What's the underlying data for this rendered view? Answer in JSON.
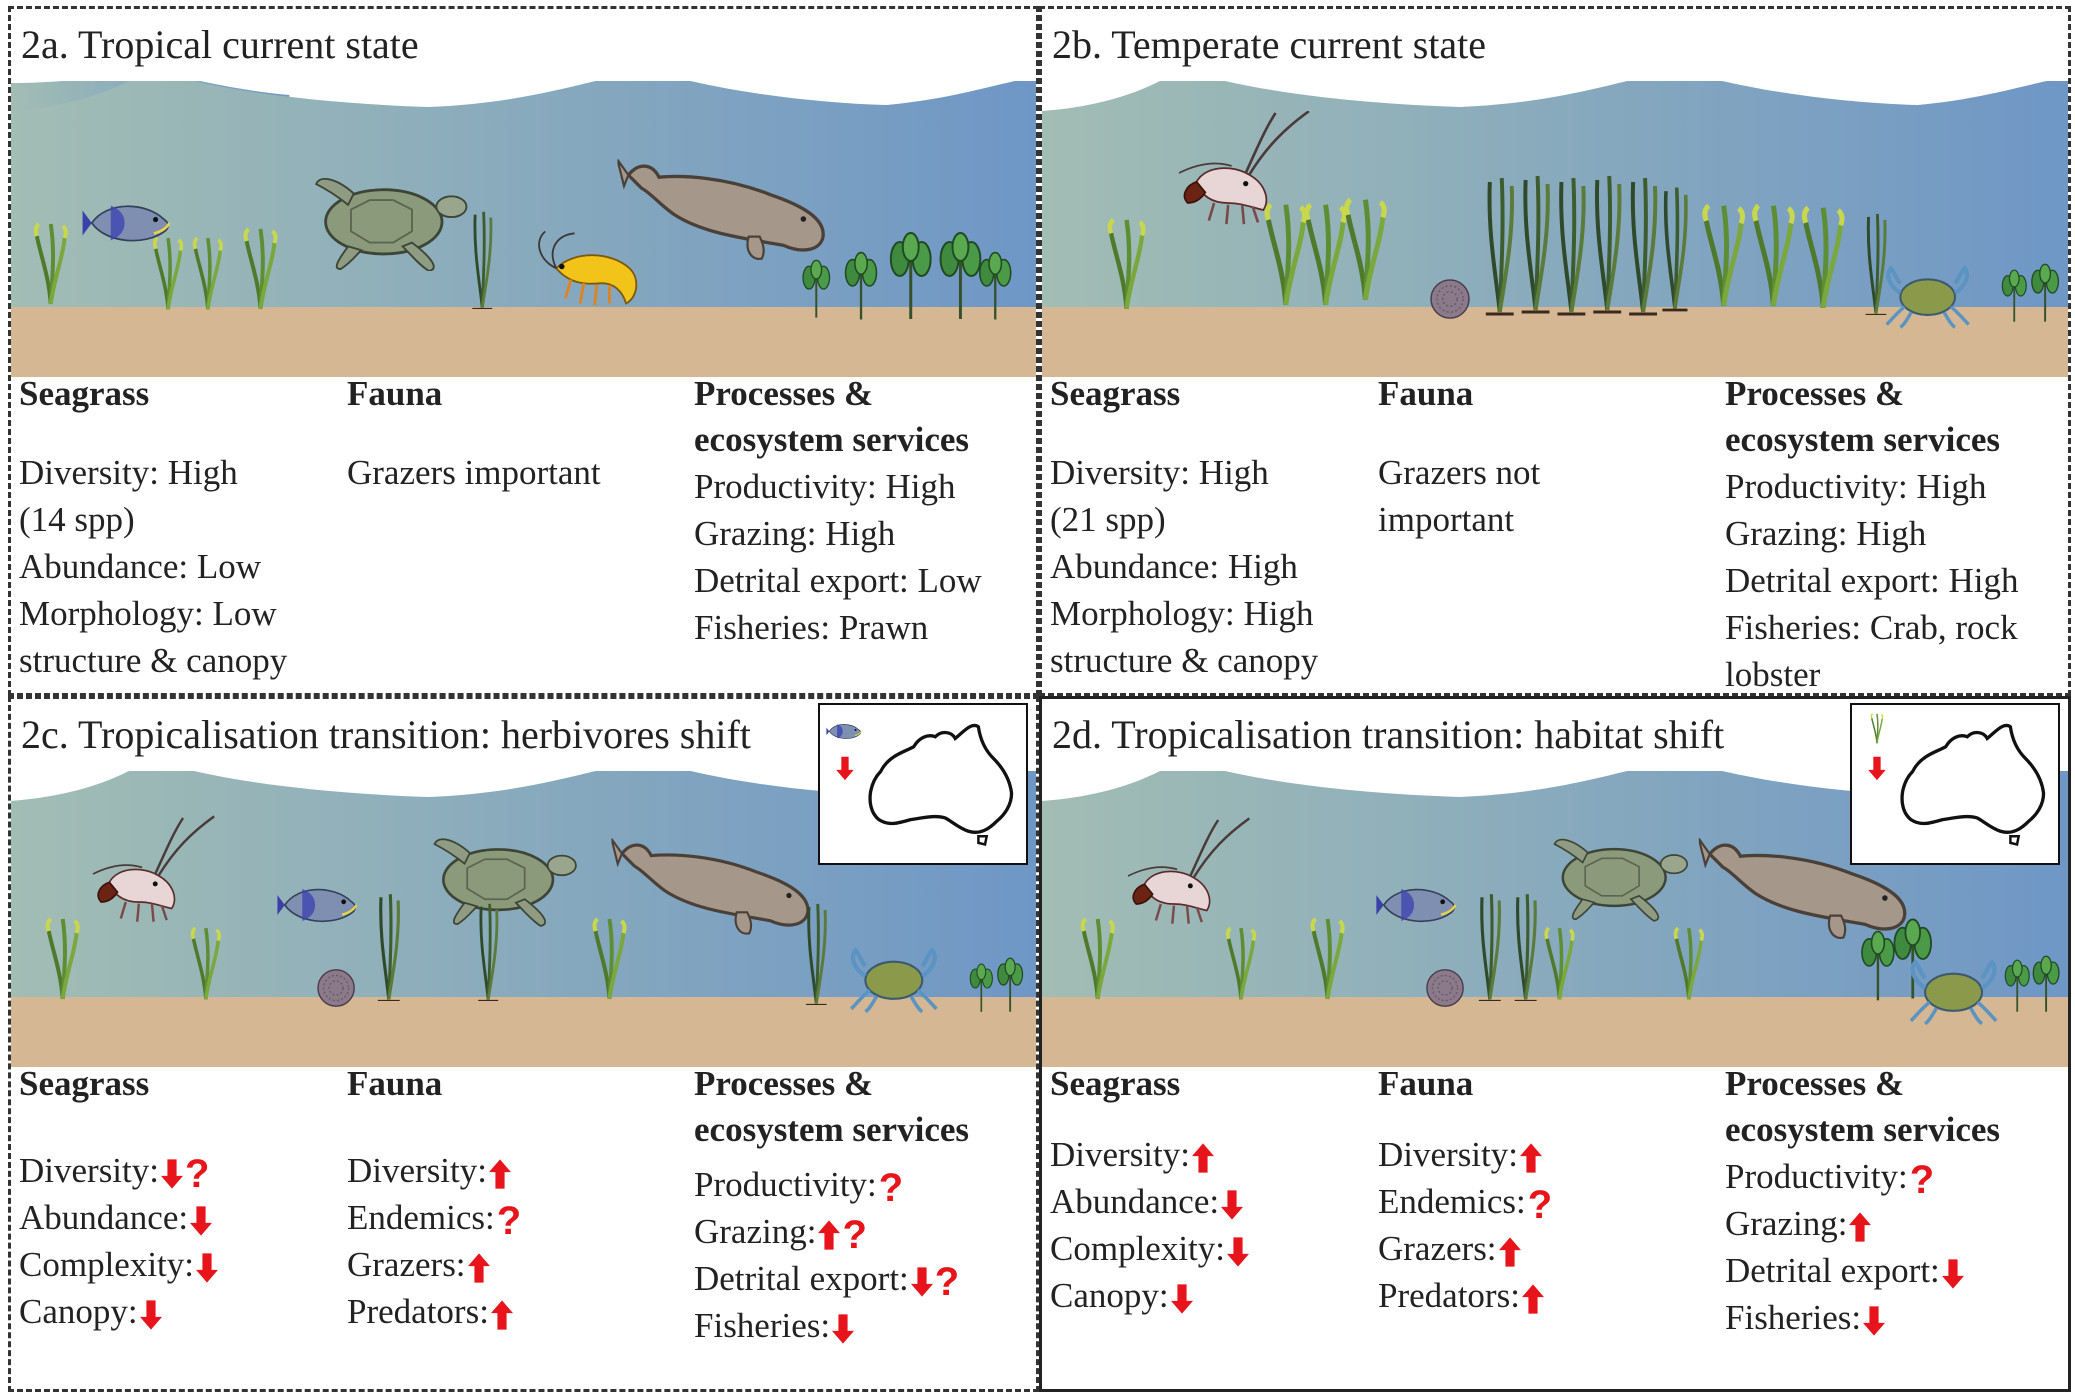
{
  "headings": {
    "seagrass": "Seagrass",
    "fauna": "Fauna",
    "processes": "Processes &",
    "processes2": "ecosystem services"
  },
  "colors": {
    "arrow": "#e8141b",
    "water_top": "#9fb9b2",
    "water_bottom": "#7399c4",
    "sand": "#d5b893"
  },
  "panels": {
    "a": {
      "title": "2a. Tropical current state",
      "seagrass": [
        "Diversity: High",
        "(14 spp)",
        "Abundance: Low",
        "Morphology: Low",
        "structure & canopy"
      ],
      "fauna": [
        "Grazers important"
      ],
      "processes": [
        "Productivity: High",
        "Grazing: High",
        "Detrital export: Low",
        "Fisheries: Prawn"
      ]
    },
    "b": {
      "title": "2b. Temperate current state",
      "seagrass": [
        "Diversity: High",
        "(21 spp)",
        "Abundance: High",
        "Morphology: High",
        "structure & canopy"
      ],
      "fauna": [
        "Grazers not",
        "important"
      ],
      "processes": [
        "Productivity: High",
        "Grazing: High",
        "Detrital export: High",
        "Fisheries: Crab, rock",
        "lobster"
      ]
    },
    "c": {
      "title": "2c. Tropicalisation transition: herbivores shift",
      "seagrass": [
        {
          "label": "Diversity:",
          "trend": "down-question"
        },
        {
          "label": "Abundance:",
          "trend": "down"
        },
        {
          "label": "Complexity:",
          "trend": "down"
        },
        {
          "label": "Canopy:",
          "trend": "down"
        }
      ],
      "fauna": [
        {
          "label": "Diversity:",
          "trend": "up"
        },
        {
          "label": "Endemics:",
          "trend": "question"
        },
        {
          "label": "Grazers:",
          "trend": "up"
        },
        {
          "label": "Predators:",
          "trend": "up"
        }
      ],
      "processes": [
        {
          "label": "Productivity:",
          "trend": "question"
        },
        {
          "label": "Grazing:",
          "trend": "up-question"
        },
        {
          "label": "Detrital export:",
          "trend": "down-question"
        },
        {
          "label": "Fisheries:",
          "trend": "down"
        }
      ]
    },
    "d": {
      "title": "2d. Tropicalisation transition: habitat shift",
      "seagrass": [
        {
          "label": "Diversity:",
          "trend": "up"
        },
        {
          "label": "Abundance:",
          "trend": "down"
        },
        {
          "label": "Complexity:",
          "trend": "down"
        },
        {
          "label": "Canopy:",
          "trend": "down"
        }
      ],
      "fauna": [
        {
          "label": "Diversity:",
          "trend": "up"
        },
        {
          "label": "Endemics:",
          "trend": "question"
        },
        {
          "label": "Grazers:",
          "trend": "up"
        },
        {
          "label": "Predators:",
          "trend": "up"
        }
      ],
      "processes": [
        {
          "label": "Productivity:",
          "trend": "question"
        },
        {
          "label": "Grazing:",
          "trend": "up"
        },
        {
          "label": "Detrital export:",
          "trend": "down"
        },
        {
          "label": "Fisheries:",
          "trend": "down"
        }
      ]
    }
  }
}
